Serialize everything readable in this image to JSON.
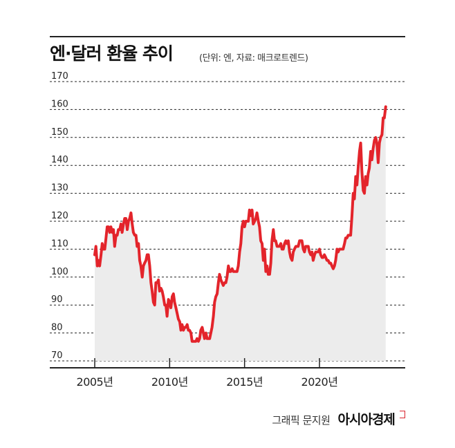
{
  "header": {
    "title": "엔·달러 환율 추이",
    "subtitle": "(단위: 엔, 자료: 매크로트렌드)"
  },
  "credit": {
    "graphic": "그래픽 문지원",
    "brand": "아시아경제"
  },
  "colors": {
    "line": "#e3242b",
    "area": "#ececec",
    "grid": "#222222",
    "axis": "#222222",
    "text": "#222222"
  },
  "chart_data": {
    "type": "area",
    "title": "엔·달러 환율 추이",
    "unit": "엔",
    "source": "매크로트렌드",
    "xlabel": "",
    "ylabel": "",
    "x_ticks": [
      2005,
      2010,
      2015,
      2020
    ],
    "x_tick_labels": [
      "2005년",
      "2010년",
      "2015년",
      "2020년"
    ],
    "xlim": [
      2005,
      2024.5
    ],
    "ylim": [
      70,
      170
    ],
    "y_ticks": [
      70,
      80,
      90,
      100,
      110,
      120,
      130,
      140,
      150,
      160,
      170
    ],
    "grid": true,
    "series": [
      {
        "points": [
          [
            2005.0,
            108
          ],
          [
            2005.08,
            111
          ],
          [
            2005.17,
            104
          ],
          [
            2005.25,
            106
          ],
          [
            2005.33,
            104
          ],
          [
            2005.42,
            108
          ],
          [
            2005.5,
            112
          ],
          [
            2005.58,
            110
          ],
          [
            2005.67,
            110
          ],
          [
            2005.75,
            114
          ],
          [
            2005.83,
            118
          ],
          [
            2005.92,
            118
          ],
          [
            2006.0,
            116
          ],
          [
            2006.08,
            118
          ],
          [
            2006.17,
            116
          ],
          [
            2006.25,
            117
          ],
          [
            2006.33,
            111
          ],
          [
            2006.42,
            115
          ],
          [
            2006.5,
            115
          ],
          [
            2006.58,
            117
          ],
          [
            2006.67,
            117
          ],
          [
            2006.75,
            119
          ],
          [
            2006.83,
            116
          ],
          [
            2006.92,
            119
          ],
          [
            2007.0,
            121
          ],
          [
            2007.08,
            121
          ],
          [
            2007.17,
            117
          ],
          [
            2007.25,
            120
          ],
          [
            2007.33,
            121
          ],
          [
            2007.42,
            123
          ],
          [
            2007.5,
            119
          ],
          [
            2007.58,
            116
          ],
          [
            2007.67,
            115
          ],
          [
            2007.75,
            115
          ],
          [
            2007.83,
            111
          ],
          [
            2007.92,
            112
          ],
          [
            2008.0,
            106
          ],
          [
            2008.08,
            104
          ],
          [
            2008.17,
            100
          ],
          [
            2008.25,
            104
          ],
          [
            2008.33,
            105
          ],
          [
            2008.42,
            106
          ],
          [
            2008.5,
            108
          ],
          [
            2008.58,
            108
          ],
          [
            2008.67,
            104
          ],
          [
            2008.75,
            98
          ],
          [
            2008.83,
            95
          ],
          [
            2008.92,
            91
          ],
          [
            2009.0,
            90
          ],
          [
            2009.08,
            98
          ],
          [
            2009.17,
            98
          ],
          [
            2009.25,
            99
          ],
          [
            2009.33,
            95
          ],
          [
            2009.42,
            96
          ],
          [
            2009.5,
            95
          ],
          [
            2009.58,
            93
          ],
          [
            2009.67,
            90
          ],
          [
            2009.75,
            90
          ],
          [
            2009.83,
            86
          ],
          [
            2009.92,
            92
          ],
          [
            2010.0,
            91
          ],
          [
            2010.08,
            89
          ],
          [
            2010.17,
            93
          ],
          [
            2010.25,
            94
          ],
          [
            2010.33,
            91
          ],
          [
            2010.42,
            89
          ],
          [
            2010.5,
            87
          ],
          [
            2010.58,
            85
          ],
          [
            2010.67,
            84
          ],
          [
            2010.75,
            81
          ],
          [
            2010.83,
            83
          ],
          [
            2010.92,
            81
          ],
          [
            2011.0,
            82
          ],
          [
            2011.08,
            82
          ],
          [
            2011.17,
            83
          ],
          [
            2011.25,
            81
          ],
          [
            2011.33,
            81
          ],
          [
            2011.42,
            80
          ],
          [
            2011.5,
            77
          ],
          [
            2011.58,
            77
          ],
          [
            2011.67,
            77
          ],
          [
            2011.75,
            77
          ],
          [
            2011.83,
            78
          ],
          [
            2011.92,
            77
          ],
          [
            2012.0,
            78
          ],
          [
            2012.08,
            81
          ],
          [
            2012.17,
            82
          ],
          [
            2012.25,
            80
          ],
          [
            2012.33,
            78
          ],
          [
            2012.42,
            80
          ],
          [
            2012.5,
            78
          ],
          [
            2012.58,
            78
          ],
          [
            2012.67,
            78
          ],
          [
            2012.75,
            80
          ],
          [
            2012.83,
            82
          ],
          [
            2012.92,
            86
          ],
          [
            2013.0,
            91
          ],
          [
            2013.08,
            93
          ],
          [
            2013.17,
            94
          ],
          [
            2013.25,
            98
          ],
          [
            2013.33,
            101
          ],
          [
            2013.42,
            99
          ],
          [
            2013.5,
            98
          ],
          [
            2013.58,
            97
          ],
          [
            2013.67,
            98
          ],
          [
            2013.75,
            98
          ],
          [
            2013.83,
            100
          ],
          [
            2013.92,
            104
          ],
          [
            2014.0,
            102
          ],
          [
            2014.08,
            102
          ],
          [
            2014.17,
            103
          ],
          [
            2014.25,
            102
          ],
          [
            2014.33,
            102
          ],
          [
            2014.42,
            102
          ],
          [
            2014.5,
            102
          ],
          [
            2014.58,
            104
          ],
          [
            2014.67,
            109
          ],
          [
            2014.75,
            112
          ],
          [
            2014.83,
            118
          ],
          [
            2014.92,
            120
          ],
          [
            2015.0,
            118
          ],
          [
            2015.08,
            120
          ],
          [
            2015.17,
            120
          ],
          [
            2015.25,
            120
          ],
          [
            2015.33,
            124
          ],
          [
            2015.42,
            122
          ],
          [
            2015.5,
            124
          ],
          [
            2015.58,
            119
          ],
          [
            2015.67,
            120
          ],
          [
            2015.75,
            121
          ],
          [
            2015.83,
            123
          ],
          [
            2015.92,
            120
          ],
          [
            2016.0,
            118
          ],
          [
            2016.08,
            113
          ],
          [
            2016.17,
            112
          ],
          [
            2016.25,
            106
          ],
          [
            2016.33,
            110
          ],
          [
            2016.42,
            102
          ],
          [
            2016.5,
            104
          ],
          [
            2016.58,
            101
          ],
          [
            2016.67,
            101
          ],
          [
            2016.75,
            105
          ],
          [
            2016.83,
            113
          ],
          [
            2016.92,
            117
          ],
          [
            2017.0,
            113
          ],
          [
            2017.08,
            113
          ],
          [
            2017.17,
            111
          ],
          [
            2017.25,
            111
          ],
          [
            2017.33,
            111
          ],
          [
            2017.42,
            112
          ],
          [
            2017.5,
            110
          ],
          [
            2017.58,
            110
          ],
          [
            2017.67,
            112
          ],
          [
            2017.75,
            113
          ],
          [
            2017.83,
            112
          ],
          [
            2017.92,
            113
          ],
          [
            2018.0,
            109
          ],
          [
            2018.08,
            107
          ],
          [
            2018.17,
            106
          ],
          [
            2018.25,
            109
          ],
          [
            2018.33,
            110
          ],
          [
            2018.42,
            111
          ],
          [
            2018.5,
            111
          ],
          [
            2018.58,
            111
          ],
          [
            2018.67,
            113
          ],
          [
            2018.75,
            113
          ],
          [
            2018.83,
            113
          ],
          [
            2018.92,
            110
          ],
          [
            2019.0,
            109
          ],
          [
            2019.08,
            111
          ],
          [
            2019.17,
            111
          ],
          [
            2019.25,
            111
          ],
          [
            2019.33,
            109
          ],
          [
            2019.42,
            108
          ],
          [
            2019.5,
            109
          ],
          [
            2019.58,
            106
          ],
          [
            2019.67,
            108
          ],
          [
            2019.75,
            109
          ],
          [
            2019.83,
            109
          ],
          [
            2019.92,
            109
          ],
          [
            2020.0,
            110
          ],
          [
            2020.08,
            108
          ],
          [
            2020.17,
            107
          ],
          [
            2020.25,
            107
          ],
          [
            2020.33,
            108
          ],
          [
            2020.42,
            107
          ],
          [
            2020.5,
            106
          ],
          [
            2020.58,
            106
          ],
          [
            2020.67,
            105
          ],
          [
            2020.75,
            105
          ],
          [
            2020.83,
            104
          ],
          [
            2020.92,
            103
          ],
          [
            2021.0,
            104
          ],
          [
            2021.08,
            106
          ],
          [
            2021.17,
            110
          ],
          [
            2021.25,
            109
          ],
          [
            2021.33,
            110
          ],
          [
            2021.42,
            110
          ],
          [
            2021.5,
            110
          ],
          [
            2021.58,
            110
          ],
          [
            2021.67,
            112
          ],
          [
            2021.75,
            114
          ],
          [
            2021.83,
            114
          ],
          [
            2021.92,
            115
          ],
          [
            2022.0,
            115
          ],
          [
            2022.08,
            115
          ],
          [
            2022.17,
            122
          ],
          [
            2022.25,
            130
          ],
          [
            2022.33,
            128
          ],
          [
            2022.42,
            136
          ],
          [
            2022.5,
            133
          ],
          [
            2022.58,
            139
          ],
          [
            2022.67,
            145
          ],
          [
            2022.75,
            148
          ],
          [
            2022.83,
            138
          ],
          [
            2022.92,
            131
          ],
          [
            2023.0,
            130
          ],
          [
            2023.08,
            136
          ],
          [
            2023.17,
            133
          ],
          [
            2023.25,
            137
          ],
          [
            2023.33,
            139
          ],
          [
            2023.42,
            145
          ],
          [
            2023.5,
            142
          ],
          [
            2023.58,
            146
          ],
          [
            2023.67,
            149
          ],
          [
            2023.75,
            150
          ],
          [
            2023.83,
            148
          ],
          [
            2023.92,
            141
          ],
          [
            2024.0,
            148
          ],
          [
            2024.08,
            150
          ],
          [
            2024.17,
            151
          ],
          [
            2024.25,
            157
          ],
          [
            2024.33,
            157
          ],
          [
            2024.42,
            161
          ]
        ]
      }
    ]
  }
}
